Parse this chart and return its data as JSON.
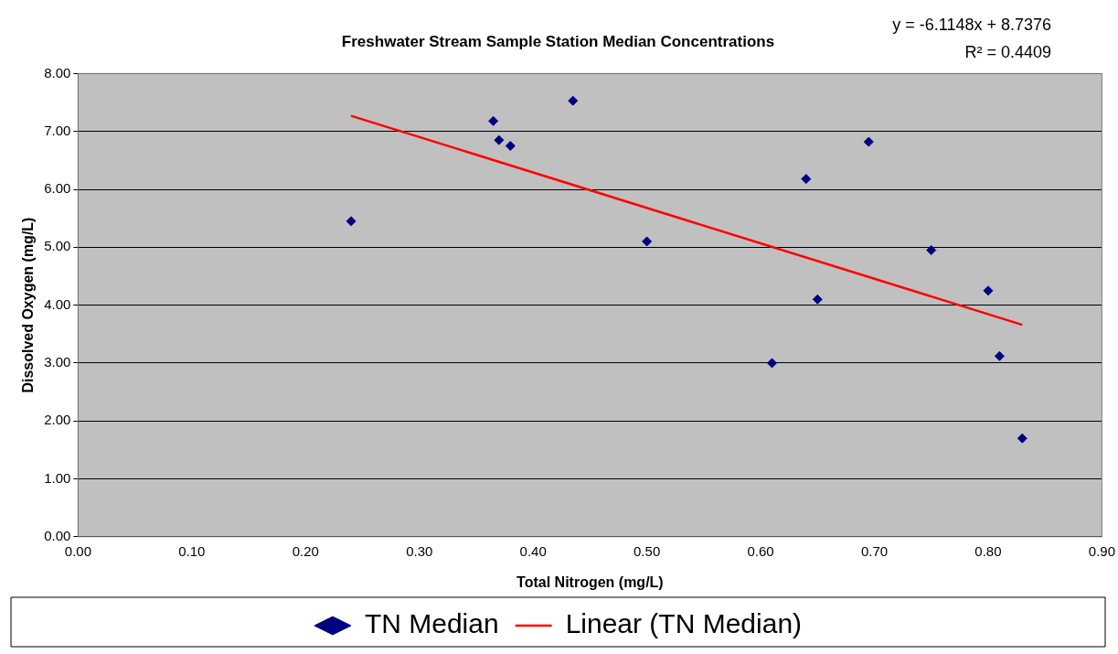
{
  "chart_data": {
    "type": "scatter",
    "title": "Freshwater Stream Sample Station Median Concentrations",
    "xlabel": "Total Nitrogen (mg/L)",
    "ylabel": "Dissolved Oxygen (mg/L)",
    "annotations": [
      "y = -6.1148x + 8.7376",
      "R² = 0.4409"
    ],
    "series": [
      {
        "name": "TN Median",
        "type": "scatter",
        "marker": "diamond",
        "color": "#000080",
        "x": [
          0.24,
          0.365,
          0.37,
          0.38,
          0.435,
          0.5,
          0.61,
          0.64,
          0.65,
          0.695,
          0.75,
          0.8,
          0.81,
          0.83
        ],
        "values": [
          5.45,
          7.18,
          6.85,
          6.75,
          7.53,
          5.1,
          3.0,
          6.18,
          4.1,
          6.82,
          4.95,
          4.25,
          3.12,
          1.7
        ]
      },
      {
        "name": "Linear (TN Median)",
        "type": "line",
        "marker": "none",
        "line_style": "solid",
        "color": "#ff0000",
        "x": [
          0.24,
          0.83
        ],
        "values": [
          7.27,
          3.66
        ]
      }
    ],
    "xlim": [
      0,
      0.9
    ],
    "xticks": [
      {
        "value": 0,
        "label": "0.00"
      },
      {
        "value": 0.1,
        "label": "0.10"
      },
      {
        "value": 0.2,
        "label": "0.20"
      },
      {
        "value": 0.3,
        "label": "0.30"
      },
      {
        "value": 0.4,
        "label": "0.40"
      },
      {
        "value": 0.5,
        "label": "0.50"
      },
      {
        "value": 0.6,
        "label": "0.60"
      },
      {
        "value": 0.7,
        "label": "0.70"
      },
      {
        "value": 0.8,
        "label": "0.80"
      },
      {
        "value": 0.9,
        "label": "0.90"
      }
    ],
    "ylim": [
      0,
      8
    ],
    "yticks": [
      {
        "value": 0,
        "label": "0.00"
      },
      {
        "value": 1,
        "label": "1.00"
      },
      {
        "value": 2,
        "label": "2.00"
      },
      {
        "value": 3,
        "label": "3.00"
      },
      {
        "value": 4,
        "label": "4.00"
      },
      {
        "value": 5,
        "label": "5.00"
      },
      {
        "value": 6,
        "label": "6.00"
      },
      {
        "value": 7,
        "label": "7.00"
      },
      {
        "value": 8,
        "label": "8.00"
      }
    ],
    "grid": "y",
    "legend": "bottom"
  }
}
